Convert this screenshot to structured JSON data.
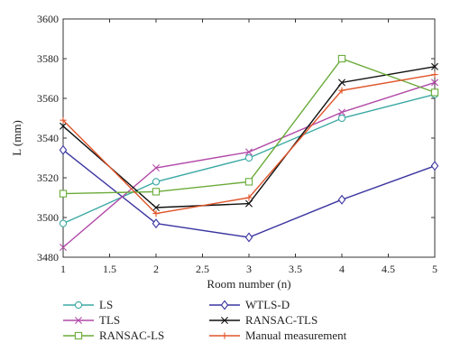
{
  "chart_data": {
    "type": "line",
    "xlabel": "Room number (n)",
    "ylabel": "L (mm)",
    "xlim": [
      1,
      5
    ],
    "ylim": [
      3480,
      3600
    ],
    "xticks": [
      1,
      1.5,
      2,
      2.5,
      3,
      3.5,
      4,
      4.5,
      5
    ],
    "xtick_labels": [
      "1",
      "1.5",
      "2",
      "2.5",
      "3",
      "3.5",
      "4",
      "4.5",
      "5"
    ],
    "yticks": [
      3480,
      3500,
      3520,
      3540,
      3560,
      3580,
      3600
    ],
    "ytick_labels": [
      "3480",
      "3500",
      "3520",
      "3540",
      "3560",
      "3580",
      "3600"
    ],
    "grid": false,
    "legend_position": "below",
    "x": [
      1,
      2,
      3,
      4,
      5
    ],
    "series": [
      {
        "name": "LS",
        "color": "#3aa9a4",
        "marker": "circle",
        "values": [
          3497,
          3518,
          3530,
          3550,
          3562
        ]
      },
      {
        "name": "WTLS-D",
        "color": "#3b35a0",
        "marker": "diamond",
        "values": [
          3534,
          3497,
          3490,
          3509,
          3526
        ]
      },
      {
        "name": "TLS",
        "color": "#b24aa8",
        "marker": "x",
        "values": [
          3485,
          3525,
          3533,
          3553,
          3568
        ]
      },
      {
        "name": "RANSAC-TLS",
        "color": "#111111",
        "marker": "x",
        "values": [
          3546,
          3505,
          3507,
          3568,
          3576
        ]
      },
      {
        "name": "RANSAC-LS",
        "color": "#6aab3a",
        "marker": "square",
        "values": [
          3512,
          3513,
          3518,
          3580,
          3563
        ]
      },
      {
        "name": "Manual measurement",
        "color": "#e0552a",
        "marker": "plus",
        "values": [
          3549,
          3502,
          3510,
          3564,
          3572
        ]
      }
    ]
  }
}
